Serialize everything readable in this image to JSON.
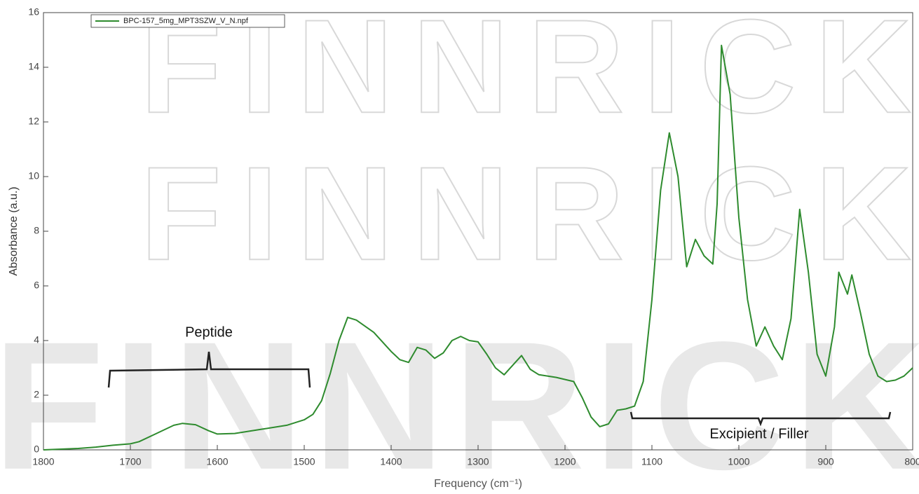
{
  "chart_data": {
    "type": "line",
    "watermark": "FINNRICK",
    "xlabel": "Frequency (cm⁻¹)",
    "ylabel": "Absorbance (a.u.)",
    "annotations": [
      "Peptide",
      "Excipient / Filler"
    ],
    "x": [
      1800,
      1760,
      1740,
      1720,
      1700,
      1690,
      1670,
      1650,
      1640,
      1625,
      1610,
      1600,
      1580,
      1550,
      1520,
      1500,
      1490,
      1480,
      1470,
      1460,
      1450,
      1440,
      1420,
      1400,
      1390,
      1380,
      1370,
      1360,
      1350,
      1340,
      1330,
      1320,
      1310,
      1300,
      1290,
      1280,
      1270,
      1260,
      1250,
      1240,
      1230,
      1210,
      1190,
      1180,
      1170,
      1160,
      1150,
      1140,
      1130,
      1120,
      1110,
      1100,
      1090,
      1080,
      1070,
      1060,
      1050,
      1040,
      1030,
      1025,
      1020,
      1010,
      1000,
      990,
      980,
      970,
      960,
      950,
      940,
      930,
      920,
      910,
      900,
      890,
      885,
      875,
      870,
      860,
      850,
      840,
      830,
      820,
      810,
      800
    ],
    "series": [
      {
        "name": "BPC-157_5mg_MPT3SZW_V_N.npf",
        "color": "#2e8b2e",
        "values": [
          0.0,
          0.05,
          0.1,
          0.17,
          0.22,
          0.3,
          0.6,
          0.9,
          0.97,
          0.92,
          0.7,
          0.58,
          0.6,
          0.75,
          0.9,
          1.1,
          1.3,
          1.8,
          2.8,
          4.0,
          4.85,
          4.75,
          4.3,
          3.6,
          3.3,
          3.2,
          3.75,
          3.65,
          3.35,
          3.55,
          4.0,
          4.15,
          4.0,
          3.95,
          3.5,
          3.0,
          2.75,
          3.1,
          3.45,
          2.95,
          2.75,
          2.65,
          2.5,
          1.9,
          1.2,
          0.85,
          0.95,
          1.45,
          1.5,
          1.6,
          2.5,
          5.5,
          9.5,
          11.6,
          10.0,
          6.7,
          7.7,
          7.1,
          6.8,
          9.0,
          14.8,
          13.0,
          8.5,
          5.5,
          3.8,
          4.5,
          3.8,
          3.3,
          4.8,
          8.8,
          6.5,
          3.5,
          2.7,
          4.5,
          6.5,
          5.7,
          6.4,
          5.0,
          3.5,
          2.7,
          2.5,
          2.55,
          2.7,
          3.0
        ]
      }
    ],
    "xlim": [
      1800,
      800
    ],
    "xticks": [
      1800,
      1700,
      1600,
      1500,
      1400,
      1300,
      1200,
      1100,
      1000,
      900,
      800
    ],
    "ylim": [
      0,
      16
    ],
    "yticks": [
      0,
      2,
      4,
      6,
      8,
      10,
      12,
      14,
      16
    ],
    "legend": "upper left"
  }
}
